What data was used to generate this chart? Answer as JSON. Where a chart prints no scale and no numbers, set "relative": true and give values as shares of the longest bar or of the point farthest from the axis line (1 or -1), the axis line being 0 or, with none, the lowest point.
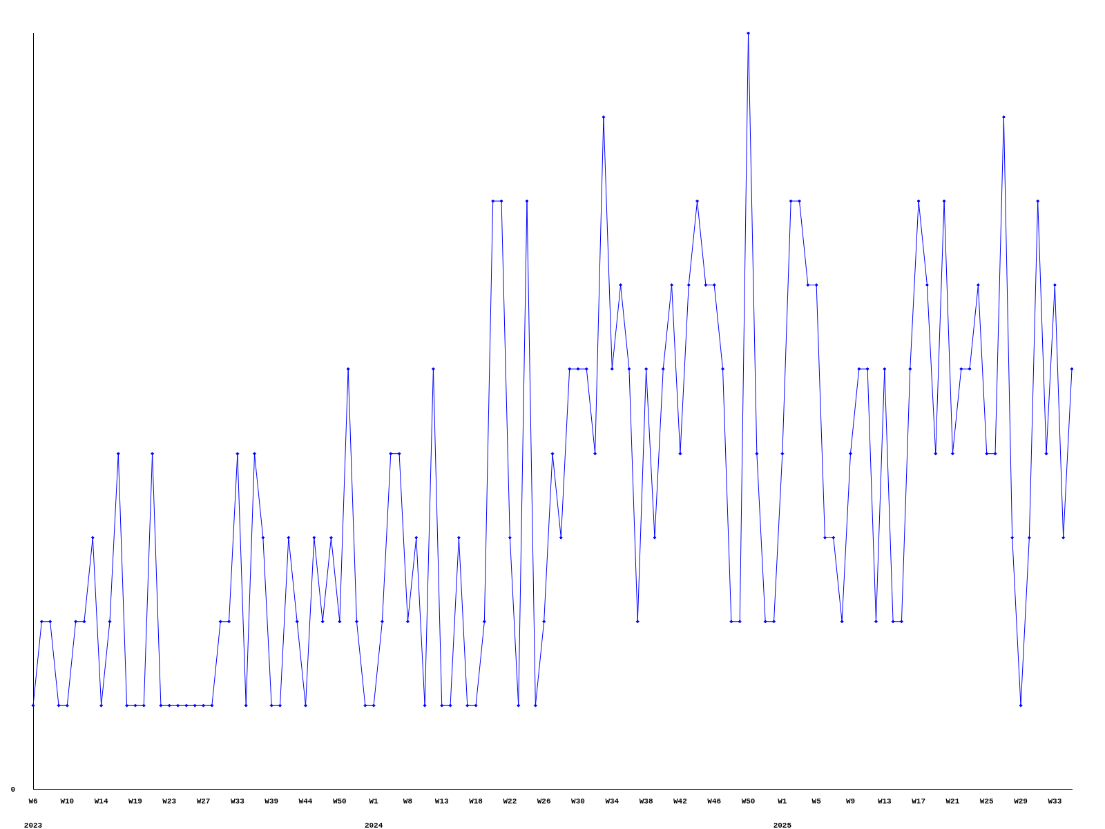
{
  "chart_data": {
    "type": "line",
    "relative": true,
    "categories": [
      "W6",
      null,
      null,
      null,
      "W10",
      null,
      null,
      null,
      "W14",
      null,
      null,
      null,
      "W19",
      null,
      null,
      null,
      "W23",
      null,
      null,
      null,
      "W27",
      null,
      null,
      null,
      "W33",
      null,
      null,
      null,
      "W39",
      null,
      null,
      null,
      "W44",
      null,
      null,
      null,
      "W50",
      null,
      null,
      null,
      "W1",
      null,
      null,
      null,
      "W8",
      null,
      null,
      null,
      "W13",
      null,
      null,
      null,
      "W18",
      null,
      null,
      null,
      "W22",
      null,
      null,
      null,
      "W26",
      null,
      null,
      null,
      "W30",
      null,
      null,
      null,
      "W34",
      null,
      null,
      null,
      "W38",
      null,
      null,
      null,
      "W42",
      null,
      null,
      null,
      "W46",
      null,
      null,
      null,
      "W50",
      null,
      null,
      null,
      "W1",
      null,
      null,
      null,
      "W5",
      null,
      null,
      null,
      "W9",
      null,
      null,
      null,
      "W13",
      null,
      null,
      null,
      "W17",
      null,
      null,
      null,
      "W21",
      null,
      null,
      null,
      "W25",
      null,
      null,
      null,
      "W29",
      null,
      null,
      null,
      "W33",
      null,
      null
    ],
    "series": [
      {
        "color": "#0000ff",
        "values": [
          0.111,
          0.222,
          0.222,
          0.111,
          0.111,
          0.222,
          0.222,
          0.333,
          0.111,
          0.222,
          0.444,
          0.111,
          0.111,
          0.111,
          0.444,
          0.111,
          0.111,
          0.111,
          0.111,
          0.111,
          0.111,
          0.111,
          0.222,
          0.222,
          0.444,
          0.111,
          0.444,
          0.333,
          0.111,
          0.111,
          0.333,
          0.222,
          0.111,
          0.333,
          0.222,
          0.333,
          0.222,
          0.556,
          0.222,
          0.111,
          0.111,
          0.222,
          0.444,
          0.444,
          0.222,
          0.333,
          0.111,
          0.556,
          0.111,
          0.111,
          0.333,
          0.111,
          0.111,
          0.222,
          0.778,
          0.778,
          0.333,
          0.111,
          0.778,
          0.111,
          0.222,
          0.444,
          0.333,
          0.556,
          0.556,
          0.556,
          0.444,
          0.889,
          0.556,
          0.667,
          0.556,
          0.222,
          0.556,
          0.333,
          0.556,
          0.667,
          0.444,
          0.667,
          0.778,
          0.667,
          0.667,
          0.556,
          0.222,
          0.222,
          1,
          0.444,
          0.222,
          0.222,
          0.444,
          0.778,
          0.778,
          0.667,
          0.667,
          0.333,
          0.333,
          0.222,
          0.444,
          0.556,
          0.556,
          0.222,
          0.556,
          0.222,
          0.222,
          0.556,
          0.778,
          0.667,
          0.444,
          0.778,
          0.444,
          0.556,
          0.556,
          0.667,
          0.444,
          0.444,
          0.889,
          0.333,
          0.111,
          0.333,
          0.778,
          0.444,
          0.667,
          0.333,
          0.556
        ]
      }
    ],
    "marker": "diamond",
    "annotations": [
      "0",
      "2023",
      "2024",
      "2025"
    ]
  }
}
